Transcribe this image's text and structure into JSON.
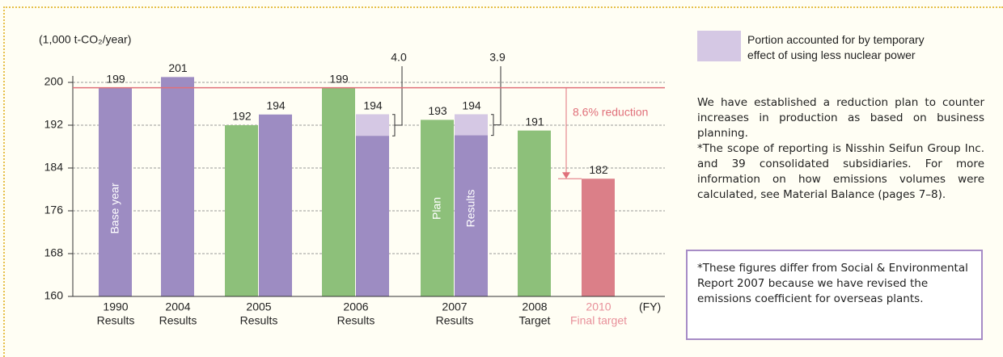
{
  "chart_data": {
    "type": "bar",
    "y_label": "(1,000 t-CO₂/year)",
    "x_unit": "(FY)",
    "ylim": [
      160,
      200
    ],
    "yticks": [
      160,
      168,
      176,
      184,
      192,
      200
    ],
    "grid": true,
    "reference": {
      "value": 199,
      "color": "#e0707a"
    },
    "reduction_label": "8.6% reduction",
    "categories": [
      {
        "label": [
          "1990",
          "Results"
        ],
        "bars": [
          {
            "value": 199,
            "color": "#9d8cc2",
            "text": "Base year"
          }
        ]
      },
      {
        "label": [
          "2004",
          "Results"
        ],
        "bars": [
          {
            "value": 201,
            "color": "#9d8cc2"
          }
        ]
      },
      {
        "label": [
          "2005",
          "Results"
        ],
        "bars": [
          {
            "value": 192,
            "color": "#8dc07a"
          },
          {
            "value": 194,
            "color": "#9d8cc2"
          }
        ]
      },
      {
        "label": [
          "2006",
          "Results"
        ],
        "bars": [
          {
            "value": 199,
            "color": "#8dc07a"
          },
          {
            "value": 194,
            "color": "#9d8cc2",
            "temporary": {
              "value": 4.0,
              "label": "4.0"
            }
          }
        ]
      },
      {
        "label": [
          "2007",
          "Results"
        ],
        "bars": [
          {
            "value": 193,
            "color": "#8dc07a",
            "text": "Plan"
          },
          {
            "value": 194,
            "color": "#9d8cc2",
            "text": "Results",
            "temporary": {
              "value": 3.9,
              "label": "3.9"
            }
          }
        ]
      },
      {
        "label": [
          "2008",
          "Target"
        ],
        "bars": [
          {
            "value": 191,
            "color": "#8dc07a"
          }
        ]
      },
      {
        "label": [
          "2010",
          "Final target"
        ],
        "label_color": "#e8909a",
        "bars": [
          {
            "value": 182,
            "color": "#db7f88"
          }
        ]
      }
    ],
    "legend": {
      "color": "#d5c8e4",
      "text": [
        "Portion accounted for by temporary",
        "effect of using less nuclear power"
      ]
    }
  },
  "notes": {
    "paragraphs": [
      "We have established a reduction plan to counter increases in production as based on business planning.",
      "*The scope of reporting is Nisshin Seifun Group Inc. and 39 consolidated subsidiaries. For more information on how emissions volumes were calculated, see Material Balance (pages 7–8)."
    ],
    "box": "*These figures differ from Social & Environmental Report 2007 because we have revised the emissions coefficient for overseas plants."
  }
}
